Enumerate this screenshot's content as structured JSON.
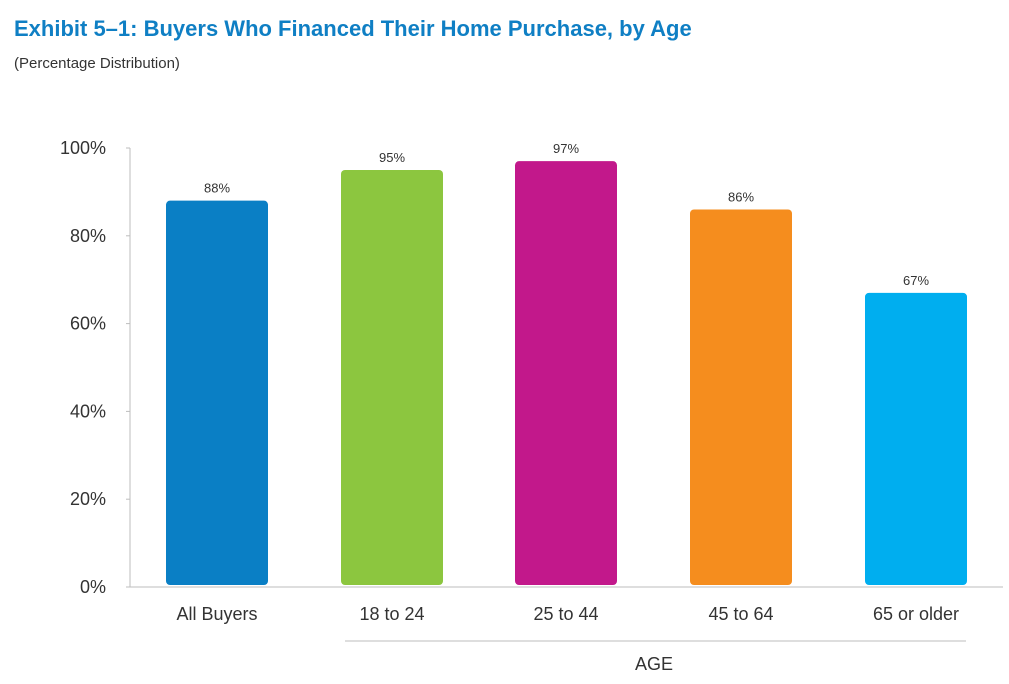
{
  "title": "Exhibit 5–1:  Buyers Who Financed Their Home Purchase, by Age",
  "subtitle": "(Percentage Distribution)",
  "colors": {
    "title": "#0f7fc4",
    "axis": "#bdbdbd",
    "text": "#333333"
  },
  "chart_data": {
    "type": "bar",
    "categories": [
      "All Buyers",
      "18 to 24",
      "25 to 44",
      "45 to 64",
      "65 or older"
    ],
    "values": [
      88,
      95,
      97,
      86,
      67
    ],
    "value_labels": [
      "88%",
      "95%",
      "97%",
      "86%",
      "67%"
    ],
    "bar_colors": [
      "#0a7fc5",
      "#8cc63f",
      "#c2188b",
      "#f58d1e",
      "#00aeef"
    ],
    "ylim": [
      0,
      100
    ],
    "yticks": [
      0,
      20,
      40,
      60,
      80,
      100
    ],
    "ytick_labels": [
      "0%",
      "20%",
      "40%",
      "60%",
      "80%",
      "100%"
    ],
    "xlabel": "AGE",
    "ylabel": "",
    "grid": false,
    "legend": "none"
  }
}
